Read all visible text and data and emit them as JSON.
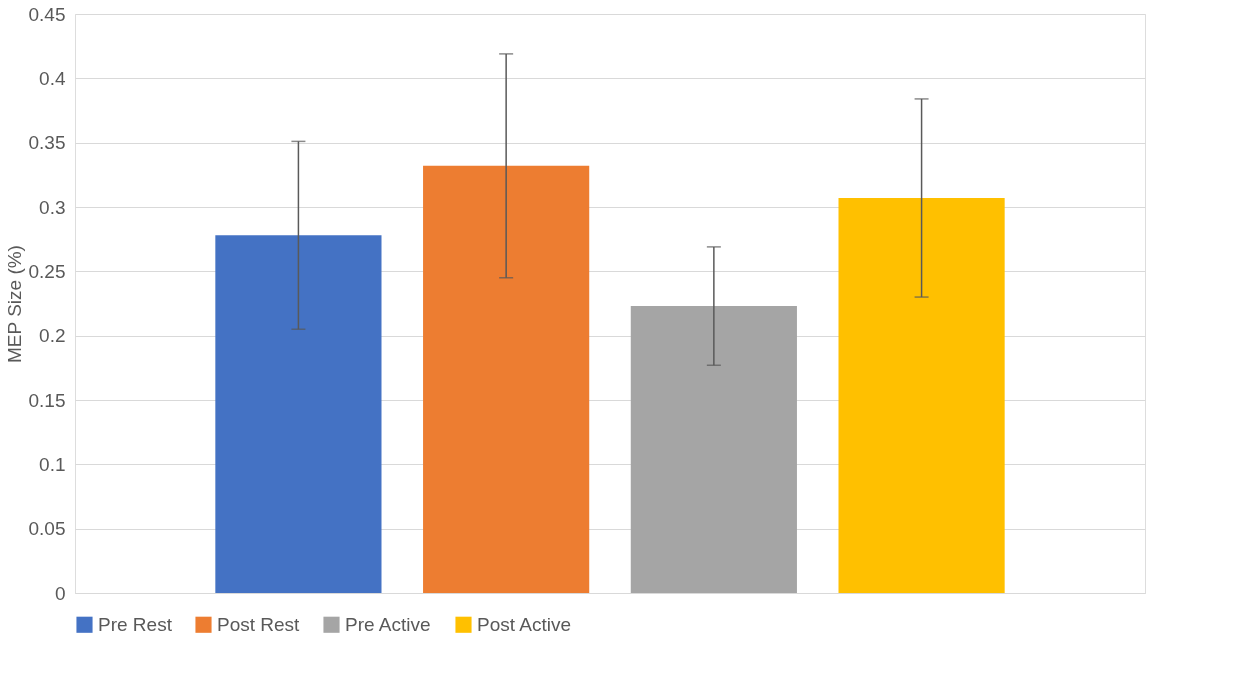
{
  "chart_data": {
    "type": "bar",
    "ylabel": "MEP Size (%)",
    "categories": [
      null
    ],
    "series": [
      {
        "name": "Pre Rest",
        "color": "#4472c4",
        "values": [
          0.278
        ],
        "errors": [
          0.073
        ]
      },
      {
        "name": "Post Rest",
        "color": "#ed7d31",
        "values": [
          0.332
        ],
        "errors": [
          0.087
        ]
      },
      {
        "name": "Pre Active",
        "color": "#a5a5a5",
        "values": [
          0.223
        ],
        "errors": [
          0.046
        ]
      },
      {
        "name": "Post Active",
        "color": "#ffc000",
        "values": [
          0.307
        ],
        "errors": [
          0.077
        ]
      }
    ],
    "ylim": [
      0,
      0.45
    ],
    "yticks": [
      0,
      0.05,
      0.1,
      0.15,
      0.2,
      0.25,
      0.3,
      0.35,
      0.4,
      0.45
    ],
    "grid": "y",
    "legend": "bottom"
  }
}
